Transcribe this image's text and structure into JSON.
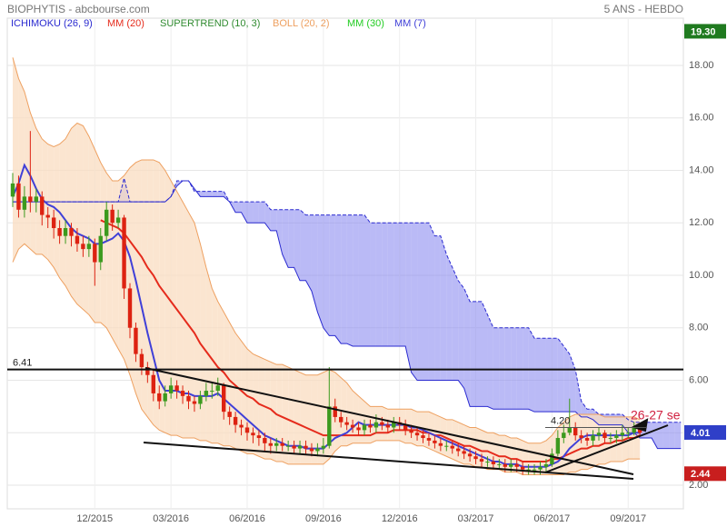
{
  "chart_data": {
    "type": "candlestick",
    "title": "BIOPHYTIS - abcbourse.com",
    "period": "5 ANS - HEBDO",
    "categories": [
      null,
      null,
      null,
      null,
      null,
      null,
      null,
      null,
      null,
      null,
      null,
      null,
      null,
      null,
      "12/2015",
      null,
      null,
      null,
      null,
      null,
      null,
      null,
      null,
      null,
      null,
      null,
      null,
      "03/2016",
      null,
      null,
      null,
      null,
      null,
      null,
      null,
      null,
      null,
      null,
      null,
      null,
      "06/2016",
      null,
      null,
      null,
      null,
      null,
      null,
      null,
      null,
      null,
      null,
      null,
      null,
      "09/2016",
      null,
      null,
      null,
      null,
      null,
      null,
      null,
      null,
      null,
      null,
      null,
      null,
      "12/2016",
      null,
      null,
      null,
      null,
      null,
      null,
      null,
      null,
      null,
      null,
      null,
      null,
      "03/2017",
      null,
      null,
      null,
      null,
      null,
      null,
      null,
      null,
      null,
      null,
      null,
      null,
      "06/2017",
      null,
      null,
      null,
      null,
      null,
      null,
      null,
      null,
      null,
      null,
      null,
      null,
      "09/2017",
      null,
      null,
      null,
      null,
      null,
      null,
      null,
      null,
      null
    ],
    "ylim": [
      1.1,
      19.8
    ],
    "yticks": [
      {
        "value": 2,
        "label": "2.00"
      },
      {
        "value": 4,
        "label": "4.00"
      },
      {
        "value": 6,
        "label": "6.00"
      },
      {
        "value": 8,
        "label": "8.00"
      },
      {
        "value": 10,
        "label": "10.00"
      },
      {
        "value": 12,
        "label": "12.00"
      },
      {
        "value": 14,
        "label": "14.00"
      },
      {
        "value": 16,
        "label": "16.00"
      },
      {
        "value": 18,
        "label": "18.00"
      }
    ],
    "grid": true,
    "up_color": "#3c9a1e",
    "down_color": "#dd2211",
    "open": [
      13.0,
      13.5,
      12.5,
      13.0,
      12.8,
      13.0,
      12.3,
      12.2,
      11.8,
      11.5,
      11.8,
      11.5,
      11.2,
      11.0,
      11.2,
      10.5,
      11.5,
      12.5,
      12.0,
      12.2,
      9.5,
      8.0,
      7.0,
      6.5,
      6.2,
      5.5,
      5.2,
      5.5,
      5.8,
      5.6,
      5.4,
      5.2,
      5.1,
      5.4,
      5.6,
      5.6,
      5.8,
      4.8,
      4.6,
      4.3,
      4.2,
      4.0,
      3.9,
      3.8,
      3.6,
      3.5,
      3.6,
      3.5,
      3.5,
      3.4,
      3.5,
      3.4,
      3.3,
      3.4,
      3.5,
      5.0,
      4.6,
      4.4,
      4.3,
      4.2,
      4.1,
      4.3,
      4.2,
      4.4,
      4.3,
      4.2,
      4.4,
      4.3,
      4.1,
      4.0,
      3.9,
      3.8,
      3.7,
      3.6,
      3.5,
      3.5,
      3.4,
      3.3,
      3.2,
      3.1,
      3.0,
      2.9,
      2.9,
      2.8,
      2.8,
      2.7,
      2.8,
      2.7,
      2.6,
      2.6,
      2.6,
      2.7,
      2.8,
      3.2,
      3.8,
      4.0,
      4.2,
      3.9,
      3.8,
      3.7,
      3.9,
      4.0,
      3.8,
      3.8,
      3.9,
      4.0,
      4.0,
      4.2,
      null,
      null,
      null,
      null,
      null,
      null,
      null
    ],
    "close": [
      13.5,
      12.5,
      13.0,
      12.8,
      13.0,
      12.3,
      12.2,
      11.8,
      11.5,
      11.8,
      11.5,
      11.2,
      11.0,
      11.2,
      10.5,
      11.5,
      12.5,
      12.0,
      12.2,
      9.5,
      8.0,
      7.0,
      6.5,
      6.2,
      5.5,
      5.2,
      5.5,
      5.8,
      5.6,
      5.4,
      5.2,
      5.1,
      5.4,
      5.6,
      5.6,
      5.8,
      4.8,
      4.6,
      4.3,
      4.2,
      4.0,
      3.9,
      3.8,
      3.6,
      3.5,
      3.6,
      3.5,
      3.5,
      3.4,
      3.5,
      3.4,
      3.3,
      3.4,
      3.5,
      5.0,
      4.6,
      4.4,
      4.3,
      4.2,
      4.1,
      4.3,
      4.2,
      4.4,
      4.3,
      4.2,
      4.4,
      4.3,
      4.1,
      4.0,
      3.9,
      3.8,
      3.7,
      3.6,
      3.5,
      3.5,
      3.4,
      3.3,
      3.2,
      3.1,
      3.0,
      2.9,
      2.9,
      2.8,
      2.8,
      2.7,
      2.8,
      2.7,
      2.6,
      2.6,
      2.6,
      2.7,
      2.8,
      3.2,
      3.8,
      4.0,
      4.2,
      3.9,
      3.8,
      3.7,
      3.9,
      4.0,
      3.8,
      3.8,
      3.9,
      4.0,
      4.0,
      4.2,
      4.0,
      null,
      null,
      null,
      null,
      null,
      null,
      null
    ],
    "high": [
      13.9,
      13.8,
      13.4,
      15.5,
      13.3,
      13.2,
      12.6,
      12.5,
      12.1,
      12.1,
      12.0,
      11.8,
      11.5,
      11.5,
      11.4,
      11.8,
      12.8,
      12.7,
      12.5,
      12.3,
      9.7,
      8.2,
      7.2,
      6.7,
      6.4,
      5.8,
      5.8,
      6.1,
      6.0,
      5.8,
      5.6,
      5.4,
      5.6,
      5.9,
      5.9,
      6.1,
      5.9,
      5.0,
      4.8,
      4.5,
      4.4,
      4.2,
      4.1,
      4.0,
      3.8,
      3.8,
      3.8,
      3.7,
      3.7,
      3.7,
      3.7,
      3.6,
      3.6,
      3.8,
      6.5,
      5.3,
      4.8,
      4.6,
      4.5,
      4.4,
      4.5,
      4.5,
      4.7,
      4.6,
      4.5,
      4.6,
      4.6,
      4.5,
      4.3,
      4.2,
      4.1,
      4.0,
      3.9,
      3.8,
      3.7,
      3.7,
      3.6,
      3.5,
      3.4,
      3.3,
      3.2,
      3.1,
      3.1,
      3.0,
      3.0,
      3.0,
      3.0,
      2.9,
      2.8,
      2.8,
      2.9,
      3.0,
      3.4,
      4.1,
      4.3,
      5.3,
      4.4,
      4.1,
      4.0,
      4.1,
      4.2,
      4.1,
      4.0,
      4.1,
      4.3,
      4.2,
      4.4,
      4.3,
      null,
      null,
      null,
      null,
      null,
      null,
      null
    ],
    "low": [
      12.6,
      12.2,
      12.2,
      12.4,
      12.4,
      11.9,
      11.8,
      11.4,
      11.2,
      11.2,
      11.1,
      10.9,
      10.7,
      10.7,
      9.6,
      10.2,
      11.3,
      11.7,
      11.8,
      9.1,
      7.6,
      6.7,
      6.2,
      5.9,
      5.2,
      4.9,
      5.0,
      5.3,
      5.3,
      5.1,
      4.9,
      4.8,
      4.9,
      5.2,
      5.3,
      5.4,
      4.5,
      4.3,
      4.0,
      3.9,
      3.7,
      3.6,
      3.5,
      3.3,
      3.2,
      3.3,
      3.3,
      3.3,
      3.2,
      3.2,
      3.2,
      3.1,
      3.1,
      3.2,
      3.4,
      4.4,
      4.2,
      4.1,
      4.0,
      3.9,
      3.9,
      4.0,
      4.0,
      4.1,
      4.0,
      4.0,
      4.1,
      3.9,
      3.8,
      3.7,
      3.6,
      3.5,
      3.4,
      3.3,
      3.3,
      3.2,
      3.1,
      3.0,
      2.9,
      2.8,
      2.7,
      2.7,
      2.6,
      2.6,
      2.5,
      2.5,
      2.5,
      2.4,
      2.4,
      2.4,
      2.4,
      2.5,
      2.7,
      3.1,
      3.6,
      3.9,
      3.7,
      3.6,
      3.5,
      3.5,
      3.7,
      3.6,
      3.6,
      3.6,
      3.7,
      3.8,
      3.9,
      3.9,
      null,
      null,
      null,
      null,
      null,
      null,
      null
    ],
    "indicators": [
      {
        "name": "ICHIMOKU (26, 9)",
        "color": "#2a2ad0",
        "fill": "#8c8cf0",
        "span_a": [
          12.8,
          12.8,
          12.8,
          12.8,
          12.8,
          12.8,
          12.8,
          12.8,
          12.8,
          12.8,
          12.8,
          12.8,
          12.8,
          12.8,
          12.8,
          12.8,
          12.8,
          12.8,
          12.8,
          12.8,
          12.8,
          12.8,
          12.8,
          12.8,
          12.8,
          12.8,
          12.8,
          13.0,
          13.4,
          13.6,
          13.6,
          13.3,
          13.0,
          13.0,
          13.0,
          13.0,
          13.0,
          12.8,
          12.4,
          12.4,
          12.0,
          12.0,
          12.0,
          12.0,
          11.7,
          11.7,
          10.8,
          10.3,
          10.3,
          9.8,
          9.8,
          9.4,
          8.6,
          8.0,
          7.7,
          7.7,
          7.4,
          7.4,
          7.3,
          7.3,
          7.3,
          7.3,
          7.3,
          7.3,
          7.3,
          7.3,
          7.3,
          7.3,
          6.3,
          6.0,
          6.0,
          6.0,
          6.0,
          6.0,
          6.0,
          6.0,
          6.0,
          5.7,
          5.0,
          5.0,
          5.0,
          5.0,
          4.9,
          4.9,
          4.9,
          4.9,
          4.9,
          4.9,
          4.9,
          4.8,
          4.8,
          4.8,
          4.8,
          4.8,
          4.8,
          4.8,
          4.8,
          4.6,
          4.6,
          4.5,
          4.3,
          4.3,
          4.3,
          4.3,
          4.3,
          4.0,
          4.0,
          3.8,
          3.8,
          3.8,
          3.4,
          3.4,
          3.4,
          3.4,
          3.4
        ],
        "span_b": [
          12.8,
          12.8,
          12.8,
          12.8,
          12.8,
          12.8,
          12.8,
          12.8,
          12.8,
          12.8,
          12.8,
          12.8,
          12.8,
          12.8,
          12.8,
          12.8,
          12.8,
          12.8,
          12.8,
          13.7,
          12.8,
          12.8,
          12.8,
          12.8,
          12.8,
          12.8,
          12.8,
          13.0,
          13.6,
          13.6,
          13.6,
          13.2,
          13.2,
          13.2,
          13.2,
          13.2,
          13.2,
          12.8,
          12.8,
          12.8,
          12.8,
          12.8,
          12.8,
          12.8,
          12.5,
          12.5,
          12.5,
          12.5,
          12.5,
          12.5,
          12.3,
          12.3,
          12.3,
          12.3,
          12.3,
          12.3,
          12.3,
          12.3,
          12.3,
          12.3,
          12.3,
          12.0,
          12.0,
          12.0,
          12.0,
          12.0,
          12.0,
          12.0,
          12.0,
          12.0,
          12.0,
          12.0,
          11.5,
          11.5,
          10.8,
          10.3,
          9.8,
          9.5,
          9.0,
          9.0,
          9.0,
          8.5,
          8.0,
          8.0,
          8.0,
          8.0,
          8.0,
          8.0,
          8.0,
          7.6,
          7.6,
          7.6,
          7.6,
          7.6,
          7.3,
          7.0,
          6.4,
          5.2,
          4.9,
          4.9,
          4.7,
          4.7,
          4.7,
          4.7,
          4.7,
          4.5,
          4.4,
          4.4,
          4.4,
          4.4,
          4.4,
          4.4,
          4.4,
          4.4,
          4.4
        ]
      },
      {
        "name": "MM (20)",
        "color": "#e52b1c",
        "values": [
          null,
          null,
          null,
          null,
          null,
          null,
          null,
          null,
          null,
          null,
          null,
          null,
          null,
          null,
          null,
          12.1,
          12.0,
          11.9,
          11.8,
          11.6,
          11.3,
          11.0,
          10.7,
          10.3,
          10.0,
          9.6,
          9.3,
          9.0,
          8.7,
          8.4,
          8.1,
          7.8,
          7.4,
          7.1,
          6.8,
          6.5,
          6.3,
          6.0,
          5.8,
          5.6,
          5.4,
          5.3,
          5.1,
          5.0,
          4.9,
          4.7,
          4.6,
          4.5,
          4.4,
          4.3,
          4.2,
          4.1,
          4.0,
          3.9,
          3.9,
          3.9,
          3.9,
          3.9,
          3.9,
          3.9,
          3.9,
          3.9,
          4.0,
          4.0,
          4.0,
          4.1,
          4.1,
          4.1,
          4.1,
          4.1,
          4.0,
          4.0,
          3.9,
          3.9,
          3.8,
          3.7,
          3.6,
          3.5,
          3.5,
          3.4,
          3.3,
          3.3,
          3.2,
          3.1,
          3.1,
          3.0,
          3.0,
          2.9,
          2.9,
          2.9,
          2.9,
          2.9,
          3.0,
          3.0,
          3.1,
          3.2,
          3.3,
          3.4,
          3.4,
          3.5,
          3.5,
          3.6,
          3.6,
          3.7,
          3.7,
          3.8,
          3.8,
          3.9,
          null,
          null,
          null,
          null,
          null,
          null,
          null
        ]
      },
      {
        "name": "SUPERTREND (10, 3)",
        "color": "#2f8a2f"
      },
      {
        "name": "BOLL (20, 2)",
        "color": "#eea060",
        "fill": "#f9dcc0",
        "upper": [
          18.3,
          17.5,
          17.0,
          16.2,
          15.6,
          15.2,
          15.0,
          14.9,
          15.0,
          15.2,
          15.6,
          15.8,
          15.7,
          15.3,
          14.8,
          14.3,
          13.9,
          13.6,
          13.6,
          13.8,
          14.1,
          14.3,
          14.4,
          14.4,
          14.4,
          14.3,
          14.0,
          13.6,
          13.2,
          12.8,
          12.4,
          12.0,
          11.2,
          10.3,
          9.5,
          9.0,
          8.6,
          8.2,
          7.8,
          7.5,
          7.2,
          7.0,
          6.9,
          6.8,
          6.7,
          6.6,
          6.6,
          6.5,
          6.4,
          6.3,
          6.2,
          6.2,
          6.2,
          6.3,
          6.4,
          6.3,
          6.1,
          5.9,
          5.6,
          5.4,
          5.2,
          5.0,
          5.0,
          5.0,
          4.9,
          4.9,
          4.9,
          4.9,
          4.9,
          4.8,
          4.8,
          4.8,
          4.7,
          4.6,
          4.5,
          4.5,
          4.4,
          4.3,
          4.2,
          4.2,
          4.1,
          4.0,
          4.0,
          3.9,
          3.9,
          3.8,
          3.8,
          3.7,
          3.6,
          3.6,
          3.6,
          3.7,
          3.9,
          4.2,
          4.4,
          4.6,
          4.7,
          4.7,
          4.7,
          4.7,
          4.7,
          4.6,
          4.6,
          4.6,
          4.6,
          4.6,
          4.6,
          4.5,
          null,
          null,
          null,
          null,
          null,
          null,
          null
        ],
        "lower": [
          10.5,
          11.0,
          11.2,
          11.0,
          10.8,
          10.8,
          10.6,
          10.3,
          9.9,
          9.6,
          9.2,
          8.9,
          8.7,
          8.5,
          8.2,
          8.2,
          8.0,
          7.6,
          7.2,
          6.8,
          6.2,
          5.5,
          4.9,
          4.6,
          4.3,
          4.1,
          4.0,
          3.9,
          3.9,
          3.8,
          3.8,
          3.8,
          3.7,
          3.7,
          3.6,
          3.6,
          3.5,
          3.5,
          3.4,
          3.3,
          3.2,
          3.2,
          3.1,
          3.0,
          3.0,
          2.9,
          2.9,
          2.8,
          2.8,
          2.8,
          2.8,
          2.8,
          2.8,
          2.8,
          3.0,
          3.3,
          3.5,
          3.5,
          3.6,
          3.6,
          3.6,
          3.6,
          3.7,
          3.7,
          3.7,
          3.7,
          3.7,
          3.6,
          3.6,
          3.5,
          3.5,
          3.4,
          3.3,
          3.2,
          3.1,
          3.0,
          2.9,
          2.8,
          2.8,
          2.7,
          2.7,
          2.6,
          2.6,
          2.6,
          2.5,
          2.5,
          2.5,
          2.4,
          2.4,
          2.4,
          2.4,
          2.4,
          2.4,
          2.4,
          2.4,
          2.5,
          2.5,
          2.6,
          2.6,
          2.7,
          2.8,
          2.8,
          2.9,
          2.9,
          2.9,
          3.0,
          3.0,
          3.0,
          null,
          null,
          null,
          null,
          null,
          null,
          null
        ]
      },
      {
        "name": "MM (30)",
        "color": "#22cc22"
      },
      {
        "name": "MM (7)",
        "color": "#4040d8",
        "values": [
          13.0,
          13.5,
          14.2,
          13.8,
          13.3,
          12.9,
          12.7,
          12.6,
          12.4,
          12.1,
          11.8,
          11.6,
          11.5,
          11.4,
          11.2,
          11.2,
          11.3,
          11.4,
          11.6,
          11.3,
          10.7,
          9.8,
          8.8,
          7.8,
          6.9,
          6.0,
          5.6,
          5.6,
          5.6,
          5.5,
          5.5,
          5.4,
          5.4,
          5.4,
          5.4,
          5.5,
          5.3,
          5.1,
          4.9,
          4.7,
          4.5,
          4.3,
          4.1,
          3.9,
          3.8,
          3.7,
          3.6,
          3.5,
          3.5,
          3.5,
          3.4,
          3.4,
          3.4,
          3.4,
          3.6,
          3.8,
          3.9,
          4.0,
          4.2,
          4.4,
          4.3,
          4.3,
          4.3,
          4.3,
          4.3,
          4.3,
          4.3,
          4.3,
          4.2,
          4.2,
          4.1,
          4.0,
          3.9,
          3.8,
          3.7,
          3.6,
          3.5,
          3.4,
          3.3,
          3.2,
          3.1,
          3.0,
          2.9,
          2.9,
          2.8,
          2.8,
          2.8,
          2.7,
          2.7,
          2.7,
          2.7,
          2.7,
          2.8,
          2.9,
          3.1,
          3.4,
          3.6,
          3.8,
          3.9,
          3.9,
          3.9,
          3.9,
          3.9,
          3.9,
          3.9,
          3.9,
          4.0,
          4.0,
          null,
          null,
          null,
          null,
          null,
          null,
          null
        ]
      }
    ],
    "levels": [
      {
        "value": 6.41,
        "label": "6.41"
      },
      {
        "value": 4.2,
        "label": "4.20"
      }
    ],
    "price_tags": [
      {
        "value": 19.3,
        "label": "19.30",
        "color": "#1f7a1f"
      },
      {
        "value": 4.01,
        "label": "4.01",
        "color": "#2f3fc8"
      },
      {
        "value": 2.44,
        "label": "2.44",
        "color": "#c81e1e"
      }
    ],
    "annotation": "26-27 se"
  }
}
